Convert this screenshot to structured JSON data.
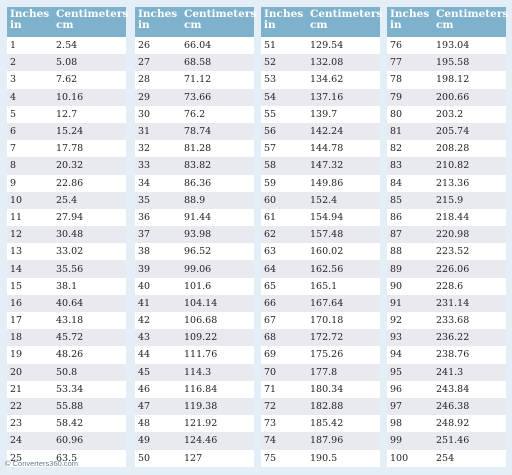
{
  "headers": {
    "inches": [
      "Inches",
      "in"
    ],
    "centimeters": [
      "Centimeters",
      "cm"
    ]
  },
  "columns": [
    {
      "inches": [
        "1",
        "2",
        "3",
        "4",
        "5",
        "6",
        "7",
        "8",
        "9",
        "10",
        "11",
        "12",
        "13",
        "14",
        "15",
        "16",
        "17",
        "18",
        "19",
        "20",
        "21",
        "22",
        "23",
        "24",
        "25"
      ],
      "cm": [
        "2.54",
        "5.08",
        "7.62",
        "10.16",
        "12.7",
        "15.24",
        "17.78",
        "20.32",
        "22.86",
        "25.4",
        "27.94",
        "30.48",
        "33.02",
        "35.56",
        "38.1",
        "40.64",
        "43.18",
        "45.72",
        "48.26",
        "50.8",
        "53.34",
        "55.88",
        "58.42",
        "60.96",
        "63.5"
      ]
    },
    {
      "inches": [
        "26",
        "27",
        "28",
        "29",
        "30",
        "31",
        "32",
        "33",
        "34",
        "35",
        "36",
        "37",
        "38",
        "39",
        "40",
        "41",
        "42",
        "43",
        "44",
        "45",
        "46",
        "47",
        "48",
        "49",
        "50"
      ],
      "cm": [
        "66.04",
        "68.58",
        "71.12",
        "73.66",
        "76.2",
        "78.74",
        "81.28",
        "83.82",
        "86.36",
        "88.9",
        "91.44",
        "93.98",
        "96.52",
        "99.06",
        "101.6",
        "104.14",
        "106.68",
        "109.22",
        "111.76",
        "114.3",
        "116.84",
        "119.38",
        "121.92",
        "124.46",
        "127"
      ]
    },
    {
      "inches": [
        "51",
        "52",
        "53",
        "54",
        "55",
        "56",
        "57",
        "58",
        "59",
        "60",
        "61",
        "62",
        "63",
        "64",
        "65",
        "66",
        "67",
        "68",
        "69",
        "70",
        "71",
        "72",
        "73",
        "74",
        "75"
      ],
      "cm": [
        "129.54",
        "132.08",
        "134.62",
        "137.16",
        "139.7",
        "142.24",
        "144.78",
        "147.32",
        "149.86",
        "152.4",
        "154.94",
        "157.48",
        "160.02",
        "162.56",
        "165.1",
        "167.64",
        "170.18",
        "172.72",
        "175.26",
        "177.8",
        "180.34",
        "182.88",
        "185.42",
        "187.96",
        "190.5"
      ]
    },
    {
      "inches": [
        "76",
        "77",
        "78",
        "79",
        "80",
        "81",
        "82",
        "83",
        "84",
        "85",
        "86",
        "87",
        "88",
        "89",
        "90",
        "91",
        "92",
        "93",
        "94",
        "95",
        "96",
        "97",
        "98",
        "99",
        "100"
      ],
      "cm": [
        "193.04",
        "195.58",
        "198.12",
        "200.66",
        "203.2",
        "205.74",
        "208.28",
        "210.82",
        "213.36",
        "215.9",
        "218.44",
        "220.98",
        "223.52",
        "226.06",
        "228.6",
        "231.14",
        "233.68",
        "236.22",
        "238.76",
        "241.3",
        "243.84",
        "246.38",
        "248.92",
        "251.46",
        "254"
      ]
    }
  ],
  "footer": "© Converters360.com",
  "colors": {
    "header_bg": "#7eb1cc",
    "row_alt": "#e9e9f0",
    "page_bg": "#e4eef6"
  }
}
